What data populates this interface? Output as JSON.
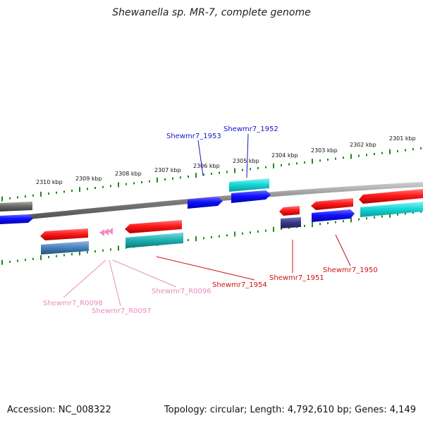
{
  "title": "Shewanella sp. MR-7, complete genome",
  "footer": {
    "accession": "Accession: NC_008322",
    "stats": "Topology: circular; Length: 4,792,610 bp; Genes: 4,149"
  },
  "ruler_labels": [
    "2310 kbp",
    "2309 kbp",
    "2308 kbp",
    "2307 kbp",
    "2306 kbp",
    "2305 kbp",
    "2304 kbp",
    "2303 kbp",
    "2302 kbp",
    "2301 kbp"
  ],
  "gene_labels": {
    "g1953": "Shewmr7_1953",
    "g1952": "Shewmr7_1952",
    "g1954": "Shewmr7_1954",
    "g1951": "Shewmr7_1951",
    "g1950": "Shewmr7_1950",
    "r0098": "Shewmr7_R0098",
    "r0097": "Shewmr7_R0097",
    "r0096": "Shewmr7_R0096"
  },
  "colors": {
    "cds_red": "#e8101a",
    "cds_blue": "#0a0ae6",
    "cds_cyan": "#14d2d2",
    "rna_pink": "#f28cc0",
    "backbone": "#8c8c8c",
    "tick_green": "#1a8a1a",
    "label_blue": "#1616c8",
    "label_red": "#d01010",
    "label_pink": "#e88cbc"
  }
}
